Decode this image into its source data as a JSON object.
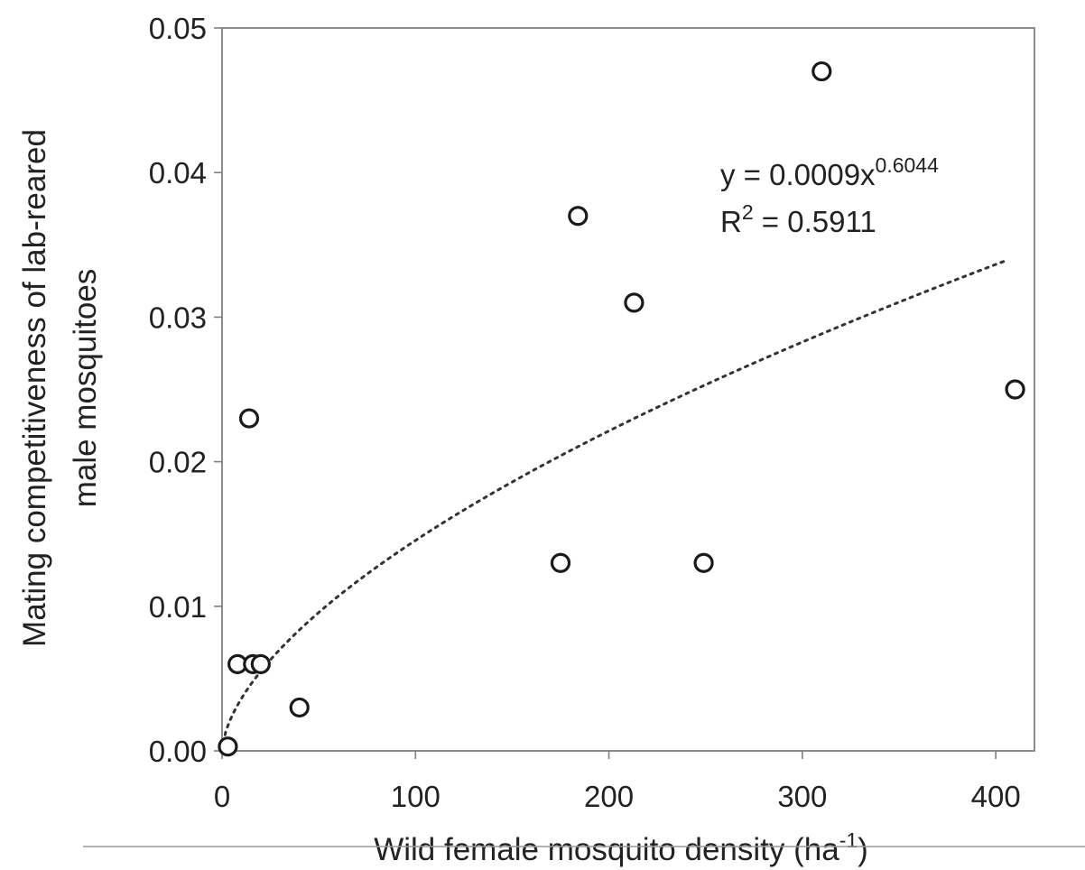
{
  "chart_data": {
    "type": "scatter",
    "title": "",
    "xlabel": "Wild female mosquito density (ha",
    "xlabel_sup": "-1",
    "xlabel_end": ")",
    "ylabel_lines": [
      "Mating competitiveness of lab-reared",
      "male mosquitoes"
    ],
    "xlim": [
      0,
      420
    ],
    "ylim": [
      0,
      0.05
    ],
    "x_ticks": [
      0,
      100,
      200,
      300,
      400
    ],
    "x_tick_labels": [
      "0",
      "100",
      "200",
      "300",
      "400"
    ],
    "y_ticks": [
      0,
      0.01,
      0.02,
      0.03,
      0.04,
      0.05
    ],
    "y_tick_labels": [
      "0.00",
      "0.01",
      "0.02",
      "0.03",
      "0.04",
      "0.05"
    ],
    "grid": false,
    "marker": "open-circle",
    "series": [
      {
        "points": [
          {
            "x": 3,
            "y": 0.0003
          },
          {
            "x": 8,
            "y": 0.006
          },
          {
            "x": 16,
            "y": 0.006
          },
          {
            "x": 20,
            "y": 0.006
          },
          {
            "x": 14,
            "y": 0.023
          },
          {
            "x": 40,
            "y": 0.003
          },
          {
            "x": 175,
            "y": 0.013
          },
          {
            "x": 184,
            "y": 0.037
          },
          {
            "x": 213,
            "y": 0.031
          },
          {
            "x": 249,
            "y": 0.013
          },
          {
            "x": 310,
            "y": 0.047
          },
          {
            "x": 410,
            "y": 0.025
          }
        ]
      }
    ],
    "trendline": {
      "type": "power",
      "coefficient": 0.0009,
      "exponent": 0.6044,
      "x_range": [
        0,
        405
      ],
      "style": "dotted"
    },
    "annotations": {
      "equation_base": "y = 0.0009x",
      "equation_exponent": "0.6044",
      "r2_base": "R",
      "r2_exponent": "2",
      "r2_value": " = 0.5911"
    }
  }
}
